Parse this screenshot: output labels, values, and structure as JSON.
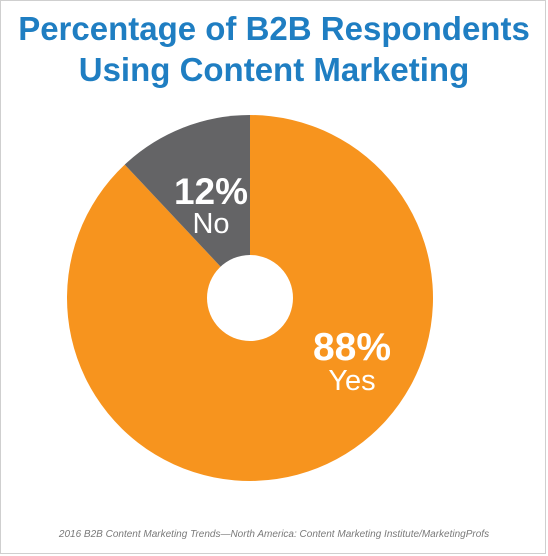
{
  "title": [
    "Percentage of B2B Respondents",
    "Using Content Marketing"
  ],
  "source": "2016 B2B Content Marketing Trends—North America: Content Marketing Institute/MarketingProfs",
  "chart_data": {
    "type": "pie",
    "title": "Percentage of B2B Respondents Using Content Marketing",
    "donut": true,
    "slices": [
      {
        "label": "Yes",
        "value": 88,
        "value_label": "88%",
        "color": "#f7941e"
      },
      {
        "label": "No",
        "value": 12,
        "value_label": "12%",
        "color": "#646466"
      }
    ],
    "legend": "none"
  }
}
